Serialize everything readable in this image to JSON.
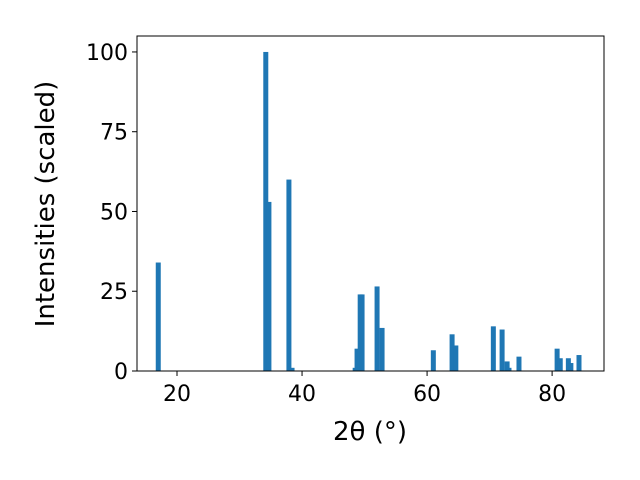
{
  "chart_data": {
    "type": "bar",
    "x_label": "2θ (°)",
    "y_label": "Intensities (scaled)",
    "x": [
      17.0,
      34.2,
      34.7,
      37.9,
      38.4,
      48.5,
      48.8,
      49.3,
      49.6,
      52.0,
      52.8,
      61.0,
      64.0,
      64.6,
      70.6,
      72.0,
      72.8,
      73.1,
      74.7,
      80.8,
      81.3,
      82.6,
      83.0,
      84.3
    ],
    "values": [
      34,
      100,
      53,
      60,
      1,
      1,
      7,
      24,
      24,
      26.5,
      13.5,
      6.5,
      11.5,
      8,
      14,
      13,
      3,
      1,
      4.5,
      7,
      4,
      4,
      2.5,
      5
    ],
    "color": "#1f77b4",
    "xlim": [
      13.6,
      88.3
    ],
    "xticks": [
      20,
      40,
      60,
      80
    ],
    "ylim": [
      0,
      105
    ],
    "yticks": [
      0,
      25,
      50,
      75,
      100
    ],
    "grid": false
  }
}
